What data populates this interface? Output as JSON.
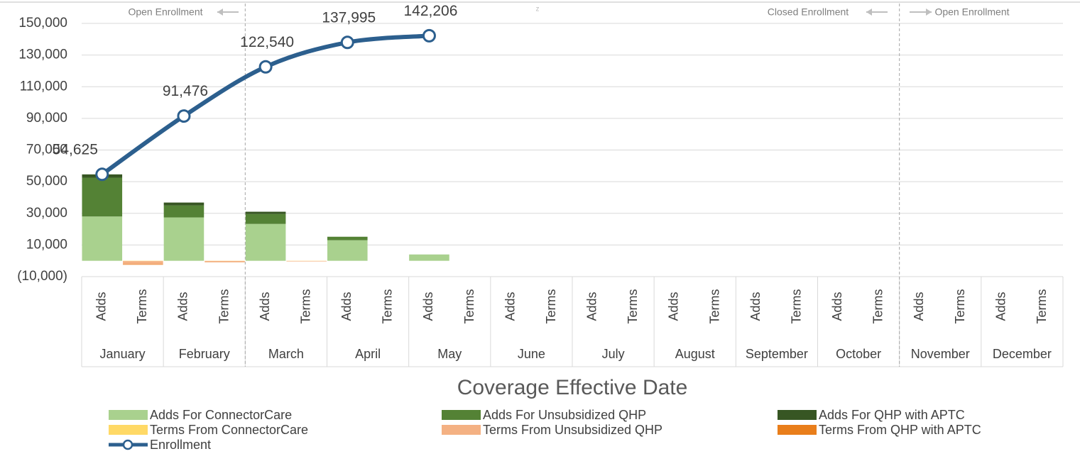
{
  "chart_data": {
    "type": "bar",
    "x_axis_label": "Coverage Effective Date",
    "categories": [
      "Adds",
      "Terms",
      "Adds",
      "Terms",
      "Adds",
      "Terms",
      "Adds",
      "Terms",
      "Adds",
      "Terms",
      "Adds",
      "Terms",
      "Adds",
      "Terms",
      "Adds",
      "Terms",
      "Adds",
      "Terms",
      "Adds",
      "Terms",
      "Adds",
      "Terms",
      "Adds",
      "Terms"
    ],
    "groups": [
      "January",
      "February",
      "March",
      "April",
      "May",
      "June",
      "July",
      "August",
      "September",
      "October",
      "November",
      "December"
    ],
    "ylim": [
      -10000,
      150000
    ],
    "yticks": [
      {
        "value": -10000,
        "label": "(10,000)"
      },
      {
        "value": 10000,
        "label": "10,000"
      },
      {
        "value": 30000,
        "label": "30,000"
      },
      {
        "value": 50000,
        "label": "50,000"
      },
      {
        "value": 70000,
        "label": "70,000"
      },
      {
        "value": 90000,
        "label": "90,000"
      },
      {
        "value": 110000,
        "label": "110,000"
      },
      {
        "value": 130000,
        "label": "130,000"
      },
      {
        "value": 150000,
        "label": "150,000"
      }
    ],
    "grid": true,
    "annotations": [
      "Open Enrollment",
      "z",
      "Closed Enrollment",
      "Open Enrollment"
    ],
    "series": [
      {
        "name": "Adds For ConnectorCare",
        "color": "#a9d18e",
        "values": [
          28000,
          null,
          27400,
          null,
          23300,
          null,
          13000,
          null,
          4000,
          null,
          null,
          null,
          null,
          null,
          null,
          null,
          null,
          null,
          null,
          null,
          null,
          null,
          null,
          null
        ]
      },
      {
        "name": "Adds For Unsubsidized QHP",
        "color": "#548235",
        "values": [
          24500,
          null,
          7600,
          null,
          6300,
          null,
          2200,
          null,
          null,
          null,
          null,
          null,
          null,
          null,
          null,
          null,
          null,
          null,
          null,
          null,
          null,
          null,
          null,
          null
        ]
      },
      {
        "name": "Adds For QHP with APTC",
        "color": "#375623",
        "values": [
          2100,
          null,
          1800,
          null,
          1400,
          null,
          null,
          null,
          null,
          null,
          null,
          null,
          null,
          null,
          null,
          null,
          null,
          null,
          null,
          null,
          null,
          null,
          null,
          null
        ]
      },
      {
        "name": "Terms From ConnectorCare",
        "color": "#ffd966",
        "values": [
          null,
          -200,
          null,
          -100,
          null,
          -100,
          null,
          null,
          null,
          null,
          null,
          null,
          null,
          null,
          null,
          null,
          null,
          null,
          null,
          null,
          null,
          null,
          null,
          null
        ]
      },
      {
        "name": "Terms From Unsubsidized QHP",
        "color": "#f4b183",
        "values": [
          null,
          -2000,
          null,
          -700,
          null,
          -300,
          null,
          null,
          null,
          null,
          null,
          null,
          null,
          null,
          null,
          null,
          null,
          null,
          null,
          null,
          null,
          null,
          null,
          null
        ]
      },
      {
        "name": "Terms From QHP with APTC",
        "color": "#e97e1b",
        "values": [
          null,
          -300,
          null,
          -100,
          null,
          null,
          null,
          null,
          null,
          null,
          null,
          null,
          null,
          null,
          null,
          null,
          null,
          null,
          null,
          null,
          null,
          null,
          null,
          null
        ]
      },
      {
        "name": "Enrollment",
        "type": "line",
        "color": "#2c5f8e",
        "values": [
          54625,
          null,
          91476,
          null,
          122540,
          null,
          137995,
          null,
          142206,
          null,
          null,
          null,
          null,
          null,
          null,
          null,
          null,
          null,
          null,
          null,
          null,
          null,
          null,
          null
        ],
        "value_labels": [
          "54,625",
          null,
          "91,476",
          null,
          "122,540",
          null,
          "137,995",
          null,
          "142,206",
          null,
          null,
          null,
          null,
          null,
          null,
          null,
          null,
          null,
          null,
          null,
          null,
          null,
          null,
          null
        ]
      }
    ]
  }
}
